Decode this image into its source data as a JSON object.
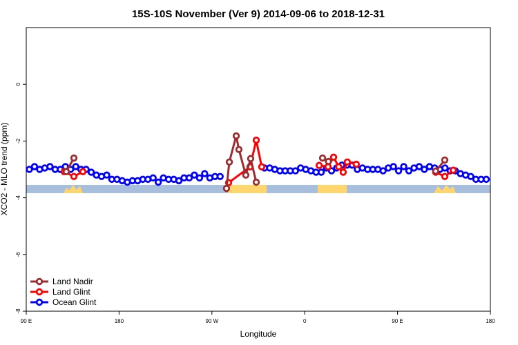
{
  "chart_data": {
    "type": "line",
    "title": "15S-10S November (Ver 9)   2014-09-06 to 2018-12-31",
    "x_label": "Longitude",
    "y_label": "XCO2 - MLO trend (ppm)",
    "xlim": [
      90,
      540
    ],
    "xticks": [
      {
        "value": 90,
        "label": "90 E"
      },
      180,
      {
        "value": 270,
        "label": "90 W"
      },
      {
        "value": 360,
        "label": "0"
      },
      {
        "value": 450,
        "label": "90 E"
      },
      180
    ],
    "ylim": [
      -8,
      2
    ],
    "yticks": [
      0,
      -2,
      -4,
      -6,
      -8
    ],
    "legend": "bottom-left",
    "series": [
      {
        "name": "Land Nadir",
        "color": "#9b2d30",
        "x": [
          128.8,
          136.2,
          200,
          284.2,
          286.9,
          293.6,
          296.2,
          302.9,
          307.6,
          313,
          340,
          377.3,
          383,
          440,
          487,
          495.8
        ],
        "values": [
          -3.08,
          -2.6,
          null,
          -3.67,
          -2.74,
          -1.82,
          -2.3,
          -3.2,
          -2.62,
          -3.45,
          null,
          -2.6,
          -2.72,
          null,
          -3.06,
          -2.67
        ]
      },
      {
        "name": "Land Glint",
        "color": "#ff0000",
        "x": [
          126.8,
          136.2,
          144.9,
          200,
          286.2,
          307,
          313,
          318.3,
          340,
          374,
          382.6,
          388,
          393,
          397.3,
          401.3,
          410,
          440,
          487,
          495.8,
          504
        ],
        "values": [
          -3.08,
          -3.25,
          -3.08,
          null,
          -3.47,
          -2.91,
          -1.97,
          -2.91,
          null,
          -2.86,
          -2.91,
          -2.57,
          -2.91,
          -3.1,
          -2.74,
          -2.82,
          null,
          -3.1,
          -3.25,
          -3.03
        ]
      },
      {
        "name": "Ocean Glint",
        "color": "#0000ff",
        "x": [
          93,
          98,
          103,
          108,
          113,
          118,
          123,
          128,
          133,
          138,
          143,
          148,
          153,
          158,
          163,
          168,
          173,
          178,
          183,
          188,
          193,
          198,
          203,
          208,
          213,
          218,
          223,
          228,
          233,
          238,
          243,
          248,
          253,
          258,
          263,
          268,
          273,
          278,
          300,
          321,
          326,
          331,
          336,
          341,
          346,
          351,
          356,
          361,
          366,
          371,
          376,
          381,
          386,
          391,
          396,
          401,
          406,
          411,
          416,
          421,
          426,
          431,
          436,
          441,
          446,
          451,
          456,
          461,
          466,
          471,
          476,
          481,
          486,
          491,
          496,
          501,
          506,
          511,
          516,
          521,
          526,
          531,
          536
        ],
        "values": [
          -3.0,
          -2.9,
          -3.0,
          -2.95,
          -2.9,
          -3.0,
          -3.0,
          -2.9,
          -3.0,
          -2.9,
          -3.0,
          -3.0,
          -3.1,
          -3.2,
          -3.25,
          -3.2,
          -3.35,
          -3.35,
          -3.4,
          -3.45,
          -3.4,
          -3.4,
          -3.35,
          -3.35,
          -3.3,
          -3.45,
          -3.3,
          -3.35,
          -3.35,
          -3.4,
          -3.3,
          -3.3,
          -3.2,
          -3.3,
          -3.15,
          -3.3,
          -3.25,
          -3.25,
          null,
          -2.95,
          -2.95,
          -3.0,
          -3.05,
          -3.05,
          -3.05,
          -3.05,
          -2.95,
          -3.0,
          -3.05,
          -3.1,
          -3.1,
          -2.95,
          -3.05,
          -2.95,
          -2.85,
          -2.85,
          -2.85,
          -3.0,
          -2.95,
          -3.0,
          -3.0,
          -3.0,
          -3.05,
          -2.95,
          -2.9,
          -3.05,
          -2.9,
          -3.05,
          -2.95,
          -2.9,
          -3.0,
          -2.9,
          -2.95,
          -3.0,
          -2.95,
          -3.05,
          -3.05,
          -3.15,
          -3.2,
          -3.25,
          -3.35,
          -3.35,
          -3.35
        ]
      }
    ]
  }
}
